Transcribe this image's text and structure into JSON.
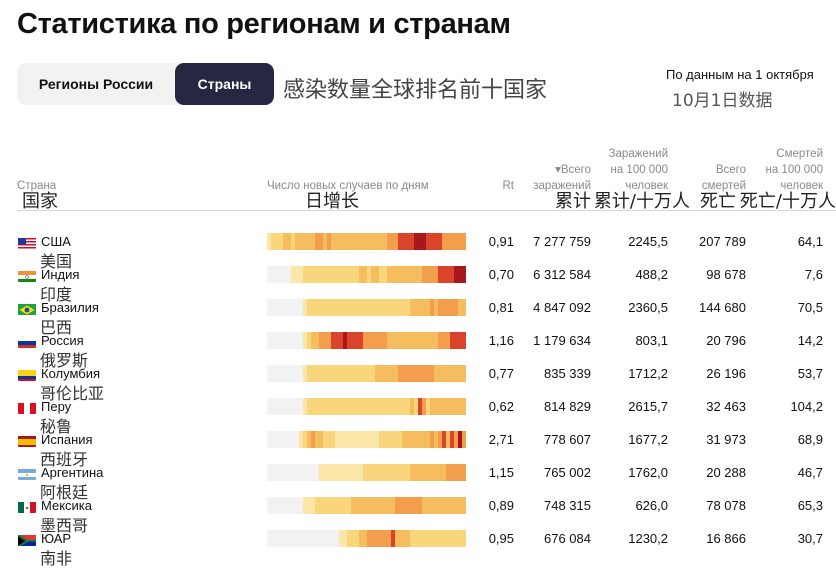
{
  "title": "Статистика по регионам и странам",
  "tabs": [
    {
      "label": "Регионы России",
      "active": false
    },
    {
      "label": "Страны",
      "active": true
    }
  ],
  "subtitle_cn": "感染数量全球排名前十国家",
  "as_of": "По данным на 1 октября",
  "as_of_cn": "10月1日数据",
  "headers": {
    "country": "Страна",
    "country_cn": "国家",
    "daily": "Число новых случаев по дням",
    "daily_cn": "日增长",
    "rt": "Rt",
    "total_l1": "▾Всего",
    "total_l2": "заражений",
    "total_cn": "累计",
    "per100_l1": "Заражений",
    "per100_l2": "на 100 000",
    "per100_l3": "человек",
    "per100_cn": "累计/十万人",
    "deaths_l1": "Всего",
    "deaths_l2": "смертей",
    "deaths_cn": "死亡",
    "dper100_l1": "Смертей",
    "dper100_l2": "на 100 000",
    "dper100_l3": "человек",
    "dper100_cn": "死亡/十万人"
  },
  "colors": {
    "tab_active_bg": "#252840",
    "heat_low": "#f2f2f2",
    "heat_pale": "#fbe6a8",
    "heat_yellow": "#f9d57c",
    "heat_orange": "#f29e4c",
    "heat_red": "#d9442b",
    "heat_dark": "#a8161e"
  },
  "rows": [
    {
      "country": "США",
      "country_cn": "美国",
      "flag": "us",
      "rt": "0,91",
      "total": "7 277 759",
      "per100k": "2245,5",
      "deaths": "207 789",
      "deaths_per100k": "64,1",
      "heat": [
        1,
        2,
        2,
        2,
        3,
        3,
        2,
        3,
        3,
        3,
        3,
        3,
        4,
        4,
        3,
        4,
        3,
        3,
        3,
        3,
        3,
        3,
        3,
        3,
        3,
        3,
        3,
        3,
        3,
        3,
        4,
        4,
        4,
        5,
        5,
        5,
        5,
        6,
        6,
        6,
        5,
        5,
        5,
        5,
        4,
        4,
        4,
        4,
        4,
        4
      ]
    },
    {
      "country": "Индия",
      "country_cn": "印度",
      "flag": "in",
      "rt": "0,70",
      "total": "6 312 584",
      "per100k": "488,2",
      "deaths": "98 678",
      "deaths_per100k": "7,6",
      "heat": [
        0,
        0,
        0,
        0,
        0,
        0,
        1,
        1,
        1,
        2,
        2,
        2,
        2,
        2,
        2,
        2,
        2,
        2,
        2,
        2,
        2,
        2,
        2,
        3,
        3,
        2,
        3,
        3,
        2,
        2,
        3,
        3,
        3,
        3,
        3,
        3,
        3,
        3,
        3,
        4,
        4,
        4,
        4,
        5,
        5,
        5,
        5,
        6,
        6,
        6
      ]
    },
    {
      "country": "Бразилия",
      "country_cn": "巴西",
      "flag": "br",
      "rt": "0,81",
      "total": "4 847 092",
      "per100k": "2360,5",
      "deaths": "144 680",
      "deaths_per100k": "70,5",
      "heat": [
        0,
        0,
        0,
        0,
        0,
        0,
        0,
        0,
        0,
        1,
        2,
        2,
        2,
        2,
        2,
        2,
        2,
        2,
        2,
        2,
        2,
        2,
        2,
        2,
        2,
        2,
        2,
        2,
        2,
        2,
        2,
        2,
        2,
        2,
        2,
        2,
        3,
        3,
        3,
        3,
        3,
        4,
        3,
        4,
        4,
        4,
        4,
        4,
        3,
        3
      ]
    },
    {
      "country": "Россия",
      "country_cn": "俄罗斯",
      "flag": "ru",
      "rt": "1,16",
      "total": "1 179 634",
      "per100k": "803,1",
      "deaths": "20 796",
      "deaths_per100k": "14,2",
      "heat": [
        0,
        0,
        0,
        0,
        0,
        0,
        0,
        0,
        0,
        1,
        2,
        3,
        3,
        4,
        4,
        4,
        5,
        5,
        5,
        6,
        5,
        5,
        5,
        5,
        4,
        4,
        4,
        4,
        4,
        4,
        3,
        3,
        3,
        3,
        3,
        3,
        3,
        3,
        3,
        3,
        3,
        3,
        3,
        4,
        4,
        4,
        5,
        5,
        5,
        5
      ]
    },
    {
      "country": "Колумбия",
      "country_cn": "哥伦比亚",
      "flag": "co",
      "rt": "0,77",
      "total": "835 339",
      "per100k": "1712,2",
      "deaths": "26 196",
      "deaths_per100k": "53,7",
      "heat": [
        0,
        0,
        0,
        0,
        0,
        0,
        0,
        0,
        0,
        1,
        2,
        2,
        2,
        2,
        2,
        2,
        2,
        2,
        2,
        2,
        2,
        2,
        2,
        2,
        2,
        2,
        2,
        3,
        3,
        3,
        3,
        3,
        3,
        4,
        4,
        4,
        4,
        4,
        4,
        4,
        4,
        4,
        3,
        3,
        3,
        3,
        3,
        3,
        3,
        3
      ]
    },
    {
      "country": "Перу",
      "country_cn": "秘鲁",
      "flag": "pe",
      "rt": "0,62",
      "total": "814 829",
      "per100k": "2615,7",
      "deaths": "32 463",
      "deaths_per100k": "104,2",
      "heat": [
        0,
        0,
        0,
        0,
        0,
        0,
        0,
        0,
        0,
        1,
        2,
        2,
        2,
        2,
        2,
        2,
        2,
        2,
        2,
        2,
        2,
        2,
        2,
        2,
        2,
        2,
        2,
        2,
        2,
        2,
        2,
        2,
        2,
        2,
        2,
        2,
        3,
        2,
        5,
        4,
        2,
        3,
        3,
        3,
        3,
        3,
        3,
        3,
        3,
        3
      ]
    },
    {
      "country": "Испания",
      "country_cn": "西班牙",
      "flag": "es",
      "rt": "2,71",
      "total": "778 607",
      "per100k": "1677,2",
      "deaths": "31 973",
      "deaths_per100k": "68,9",
      "heat": [
        0,
        0,
        0,
        0,
        0,
        0,
        0,
        0,
        1,
        2,
        3,
        4,
        3,
        3,
        2,
        2,
        2,
        1,
        1,
        1,
        1,
        1,
        1,
        1,
        1,
        1,
        1,
        1,
        2,
        2,
        2,
        2,
        2,
        2,
        3,
        3,
        3,
        3,
        3,
        3,
        3,
        4,
        3,
        4,
        5,
        3,
        5,
        4,
        6,
        4
      ]
    },
    {
      "country": "Аргентина",
      "country_cn": "阿根廷",
      "flag": "ar",
      "rt": "1,15",
      "total": "765 002",
      "per100k": "1762,0",
      "deaths": "20 288",
      "deaths_per100k": "46,7",
      "heat": [
        0,
        0,
        0,
        0,
        0,
        0,
        0,
        0,
        0,
        0,
        0,
        0,
        0,
        1,
        1,
        1,
        1,
        1,
        1,
        1,
        1,
        1,
        1,
        1,
        2,
        2,
        2,
        2,
        2,
        2,
        2,
        2,
        2,
        2,
        2,
        2,
        3,
        3,
        3,
        3,
        3,
        3,
        3,
        3,
        3,
        4,
        4,
        4,
        4,
        4
      ]
    },
    {
      "country": "Мексика",
      "country_cn": "墨西哥",
      "flag": "mx",
      "rt": "0,89",
      "total": "748 315",
      "per100k": "626,0",
      "deaths": "78 078",
      "deaths_per100k": "65,3",
      "heat": [
        0,
        0,
        0,
        0,
        0,
        0,
        0,
        0,
        0,
        1,
        1,
        1,
        2,
        2,
        2,
        2,
        2,
        2,
        2,
        2,
        2,
        3,
        3,
        3,
        3,
        3,
        3,
        3,
        3,
        3,
        3,
        3,
        4,
        4,
        4,
        4,
        4,
        4,
        4,
        3,
        3,
        3,
        3,
        3,
        3,
        3,
        3,
        3,
        3,
        3
      ]
    },
    {
      "country": "ЮАР",
      "country_cn": "南非",
      "flag": "za",
      "rt": "0,95",
      "total": "676 084",
      "per100k": "1230,2",
      "deaths": "16 866",
      "deaths_per100k": "30,7",
      "heat": [
        0,
        0,
        0,
        0,
        0,
        0,
        0,
        0,
        0,
        0,
        0,
        0,
        0,
        0,
        0,
        0,
        0,
        0,
        1,
        1,
        2,
        2,
        2,
        3,
        3,
        4,
        4,
        4,
        4,
        4,
        4,
        5,
        3,
        3,
        3,
        3,
        2,
        2,
        2,
        2,
        2,
        2,
        2,
        2,
        2,
        2,
        2,
        2,
        2,
        2
      ]
    }
  ]
}
